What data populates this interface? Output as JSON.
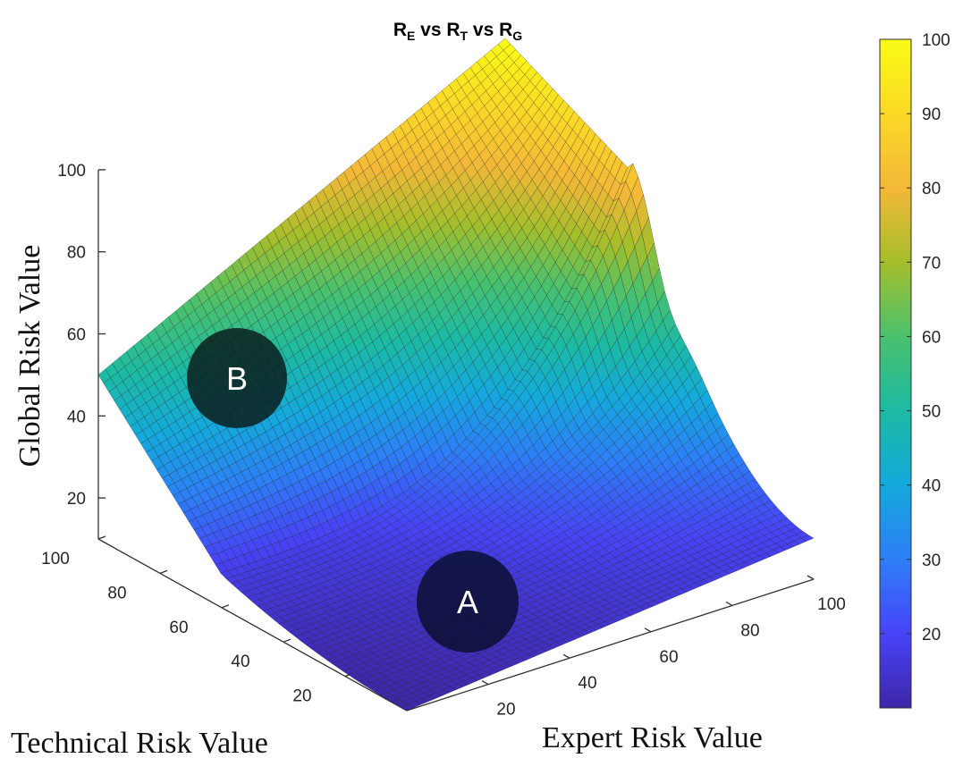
{
  "chart_data": {
    "type": "surface3d",
    "title": {
      "parts": [
        {
          "text": "R",
          "sub": "E"
        },
        {
          "text": " vs R",
          "sub": "T"
        },
        {
          "text": " vs R",
          "sub": "G"
        }
      ]
    },
    "xlabel": "Expert Risk Value",
    "ylabel": "Technical Risk Value",
    "zlabel": "Global Risk Value",
    "xlim": [
      0,
      100
    ],
    "ylim": [
      0,
      100
    ],
    "zlim": [
      10,
      100
    ],
    "xticks": [
      "20",
      "40",
      "60",
      "80",
      "100"
    ],
    "yticks": [
      "20",
      "40",
      "60",
      "80",
      "100"
    ],
    "zticks": [
      "20",
      "40",
      "60",
      "80",
      "100"
    ],
    "colorbar": {
      "colormap": "parula",
      "range": [
        10,
        100
      ],
      "ticks": [
        "20",
        "30",
        "40",
        "50",
        "60",
        "70",
        "80",
        "90",
        "100"
      ],
      "stops": [
        "#3e26a8",
        "#4743f8",
        "#2d7ef7",
        "#14a9dc",
        "#1cbaa3",
        "#4ac16d",
        "#a5be2b",
        "#f3b838",
        "#fbd926",
        "#f9fb15"
      ]
    },
    "surface_corners": [
      {
        "x": 0,
        "y": 0,
        "z": 10
      },
      {
        "x": 100,
        "y": 0,
        "z": 20
      },
      {
        "x": 100,
        "y": 100,
        "z": 100
      },
      {
        "x": 0,
        "y": 100,
        "z": 50
      }
    ],
    "markers": [
      {
        "label": "A",
        "x": 55,
        "y": 20,
        "z": 15
      },
      {
        "label": "B",
        "x": 5,
        "y": 78,
        "z": 50
      }
    ]
  }
}
